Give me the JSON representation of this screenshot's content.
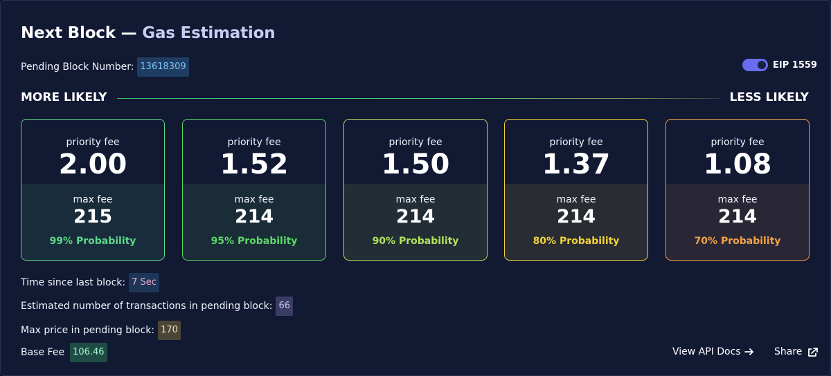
{
  "header": {
    "title_main": "Next Block —",
    "title_sub": "Gas Estimation"
  },
  "pending_block": {
    "label": "Pending Block Number:",
    "value": "13618309"
  },
  "eip_toggle": {
    "label": "EIP 1559",
    "enabled": true
  },
  "likelihood": {
    "left": "MORE LIKELY",
    "right": "LESS LIKELY"
  },
  "cards": [
    {
      "priority_label": "priority fee",
      "priority": "2.00",
      "max_label": "max fee",
      "max": "215",
      "probability": "99% Probability",
      "color": "#5dd98a"
    },
    {
      "priority_label": "priority fee",
      "priority": "1.52",
      "max_label": "max fee",
      "max": "214",
      "probability": "95% Probability",
      "color": "#5ed767"
    },
    {
      "priority_label": "priority fee",
      "priority": "1.50",
      "max_label": "max fee",
      "max": "214",
      "probability": "90% Probability",
      "color": "#b3e35a"
    },
    {
      "priority_label": "priority fee",
      "priority": "1.37",
      "max_label": "max fee",
      "max": "214",
      "probability": "80% Probability",
      "color": "#f2d43a"
    },
    {
      "priority_label": "priority fee",
      "priority": "1.08",
      "max_label": "max fee",
      "max": "214",
      "probability": "70% Probability",
      "color": "#f2a24a"
    }
  ],
  "stats": {
    "time_label": "Time since last block:",
    "time_value": "7 Sec",
    "tx_label": "Estimated number of transactions in pending block:",
    "tx_value": "66",
    "max_price_label": "Max price in pending block:",
    "max_price_value": "170",
    "base_fee_label": "Base Fee",
    "base_fee_value": "106.46"
  },
  "footer": {
    "api_docs": "View API Docs",
    "share": "Share"
  },
  "colors": {
    "background": "#121933",
    "accent": "#6a6cf0"
  }
}
